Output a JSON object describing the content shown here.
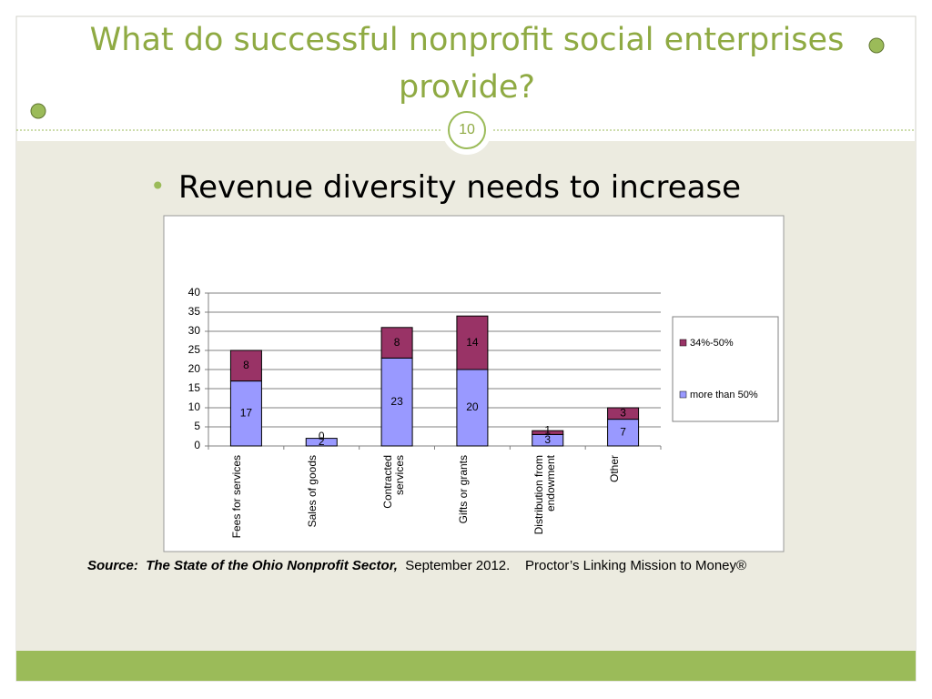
{
  "slide": {
    "title": "What do successful nonprofit social enterprises provide?",
    "page_number": "10",
    "bullet": "Revenue diversity needs to increase",
    "source_label": "Source:",
    "source_title": "The State of the Ohio Nonprofit Sector,",
    "source_rest": "September 2012.    Proctor’s Linking Mission to Money®"
  },
  "chart_data": {
    "type": "stacked_bar",
    "categories": [
      "Fees for services",
      "Sales of goods",
      "Contracted services",
      "Gifts or grants",
      "Distribution from endowment",
      "Other"
    ],
    "series": [
      {
        "name": "more than 50%",
        "color": "#9999ff",
        "values": [
          17,
          2,
          23,
          20,
          3,
          7
        ]
      },
      {
        "name": "34%-50%",
        "color": "#993366",
        "values": [
          8,
          0,
          8,
          14,
          1,
          3
        ]
      }
    ],
    "ylim": [
      0,
      40
    ],
    "yticks": [
      0,
      5,
      10,
      15,
      20,
      25,
      30,
      35,
      40
    ],
    "grid": true,
    "legend": "right"
  }
}
